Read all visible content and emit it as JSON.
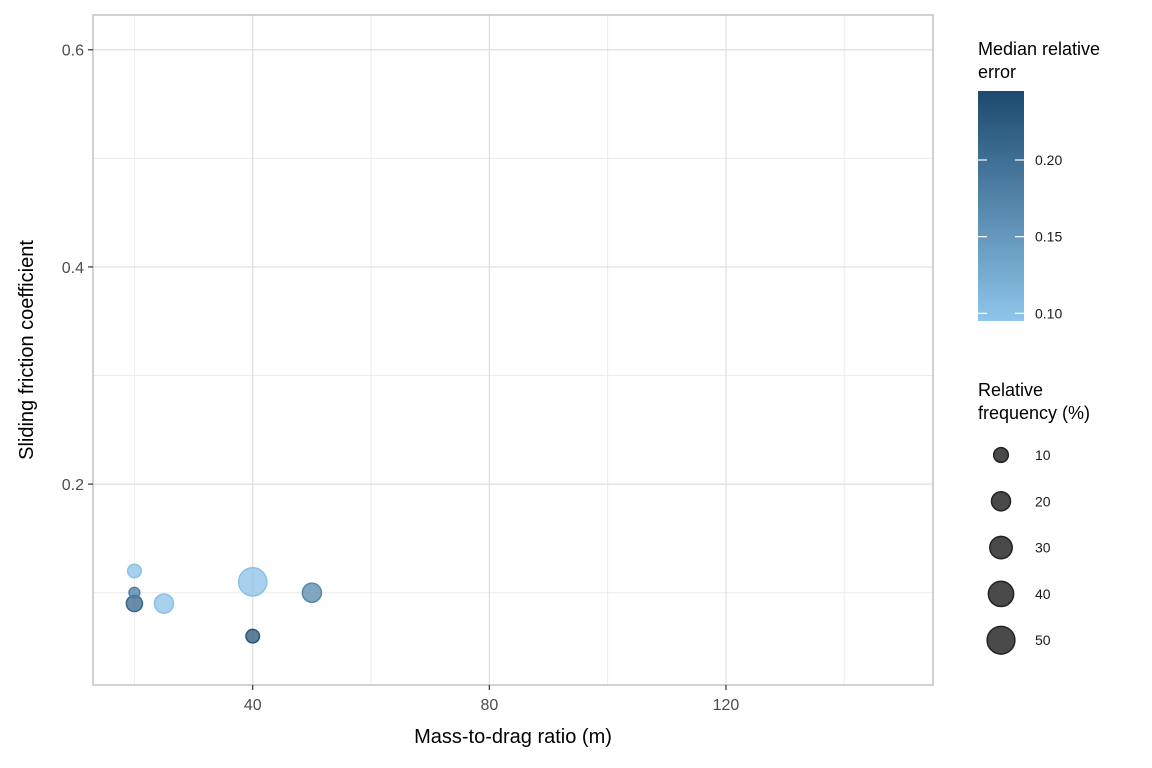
{
  "chart_data": {
    "type": "scatter",
    "xlabel": "Mass-to-drag ratio (m)",
    "ylabel": "Sliding friction coefficient",
    "xlim": [
      13,
      155
    ],
    "ylim": [
      0.015,
      0.632
    ],
    "x_ticks": [
      40,
      80,
      120
    ],
    "x_tick_labels": [
      "40",
      "80",
      "120"
    ],
    "x_minor_ticks": [
      20,
      60,
      100,
      140
    ],
    "y_ticks": [
      0.2,
      0.4,
      0.6
    ],
    "y_tick_labels": [
      "0.2",
      "0.4",
      "0.6"
    ],
    "y_minor_ticks": [
      0.1,
      0.3,
      0.5
    ],
    "grid": true,
    "points": [
      {
        "x": 20,
        "y": 0.12,
        "size": 8,
        "color": 0.1
      },
      {
        "x": 20,
        "y": 0.1,
        "size": 4,
        "color": 0.18
      },
      {
        "x": 20,
        "y": 0.09,
        "size": 13,
        "color": 0.21
      },
      {
        "x": 25,
        "y": 0.09,
        "size": 20,
        "color": 0.1
      },
      {
        "x": 40,
        "y": 0.11,
        "size": 52,
        "color": 0.1
      },
      {
        "x": 40,
        "y": 0.06,
        "size": 8,
        "color": 0.23
      },
      {
        "x": 50,
        "y": 0.1,
        "size": 20,
        "color": 0.17
      }
    ],
    "color_legend": {
      "title": [
        "Median relative",
        "error"
      ],
      "min": 0.095,
      "max": 0.245,
      "low_color": "#8ec5ea",
      "high_color": "#1d4a6e",
      "ticks": [
        0.1,
        0.15,
        0.2
      ],
      "tick_labels": [
        "0.10",
        "0.15",
        "0.20"
      ]
    },
    "size_legend": {
      "title": [
        "Relative",
        "frequency (%)"
      ],
      "values": [
        10,
        20,
        30,
        40,
        50
      ],
      "labels": [
        "10",
        "20",
        "30",
        "40",
        "50"
      ],
      "fill": "#4a4a4a",
      "stroke": "#222222"
    }
  }
}
